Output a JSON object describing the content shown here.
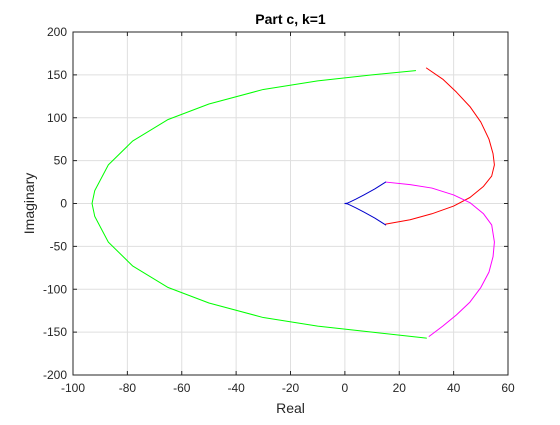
{
  "chart_data": {
    "type": "line",
    "title": "Part c, k=1",
    "xlabel": "Real",
    "ylabel": "Imaginary",
    "xlim": [
      -100,
      60
    ],
    "ylim": [
      -200,
      200
    ],
    "xticks": [
      -100,
      -80,
      -60,
      -40,
      -20,
      0,
      20,
      40,
      60
    ],
    "yticks": [
      -200,
      -150,
      -100,
      -50,
      0,
      50,
      100,
      150,
      200
    ],
    "xtick_labels": [
      "-100",
      "-80",
      "-60",
      "-40",
      "-20",
      "0",
      "20",
      "40",
      "60"
    ],
    "ytick_labels": [
      "-200",
      "-150",
      "-100",
      "-50",
      "0",
      "50",
      "100",
      "150",
      "200"
    ],
    "grid": true,
    "series": [
      {
        "color": "#00ff00",
        "x": [
          26,
          10,
          -10,
          -30,
          -50,
          -65,
          -78,
          -87,
          -92,
          -93,
          -92,
          -87,
          -78,
          -65,
          -50,
          -30,
          -10,
          10,
          30
        ],
        "y": [
          155,
          150,
          143,
          133,
          116,
          98,
          73,
          45,
          15,
          0,
          -15,
          -45,
          -73,
          -98,
          -116,
          -133,
          -143,
          -150,
          -157
        ]
      },
      {
        "color": "#ff0000",
        "x": [
          30,
          36,
          41,
          46,
          50,
          53,
          54.5,
          55,
          54,
          51,
          46,
          40,
          32,
          24,
          15
        ],
        "y": [
          158,
          145,
          130,
          113,
          95,
          75,
          58,
          45,
          32,
          20,
          7,
          -3,
          -12,
          -19,
          -24
        ]
      },
      {
        "color": "#ff00ff",
        "x": [
          15,
          24,
          32,
          40,
          46,
          51,
          54,
          55,
          54.5,
          53,
          50,
          46,
          41,
          36,
          31
        ],
        "y": [
          25,
          22,
          18,
          10,
          1,
          -12,
          -25,
          -45,
          -62,
          -80,
          -98,
          -115,
          -130,
          -143,
          -155
        ]
      },
      {
        "color": "#0000cc",
        "x": [
          15,
          11,
          7,
          4,
          2,
          1,
          0,
          1,
          2,
          4,
          7,
          11,
          15
        ],
        "y": [
          25,
          17,
          10,
          5,
          2,
          0.5,
          0,
          -0.5,
          -2,
          -5,
          -10,
          -17,
          -25
        ]
      }
    ]
  }
}
